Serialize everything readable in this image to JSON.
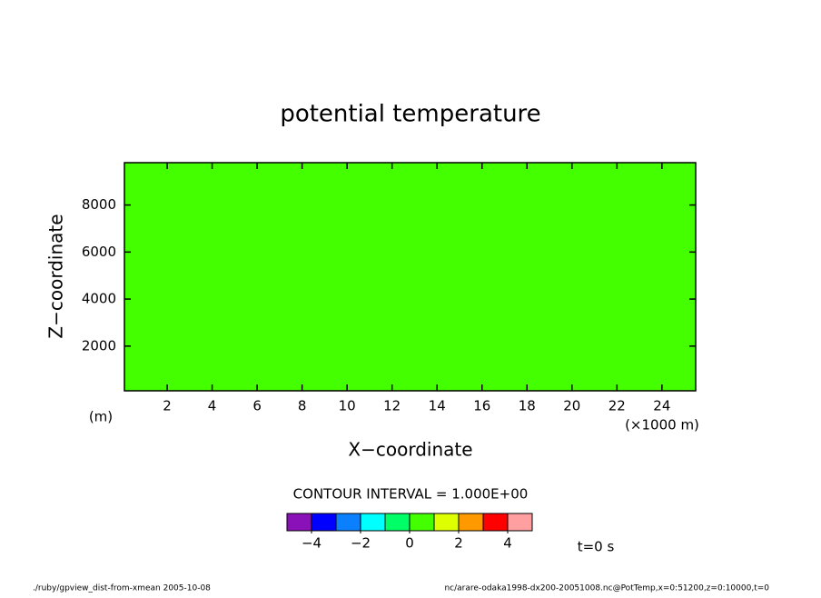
{
  "chart_data": {
    "type": "contour",
    "title": "potential temperature",
    "xlabel": "X−coordinate",
    "ylabel": "Z−coordinate",
    "xunit": "(×1000 m)",
    "yunit": "(m)",
    "xlim": [
      0.1,
      25.5
    ],
    "ylim": [
      100,
      9800
    ],
    "xticks": [
      2,
      4,
      6,
      8,
      10,
      12,
      14,
      16,
      18,
      20,
      22,
      24
    ],
    "yticks": [
      2000,
      4000,
      6000,
      8000
    ],
    "field_color": "#44ff00",
    "contour_interval": "CONTOUR INTERVAL = 1.000E+00",
    "colorbar": {
      "levels": [
        -5,
        -4,
        -3,
        -2,
        -1,
        0,
        1,
        2,
        3,
        4,
        5
      ],
      "colors": [
        "#8a10b8",
        "#0000ff",
        "#0a80ff",
        "#00ffff",
        "#00ff66",
        "#44ff00",
        "#ddff00",
        "#ff9900",
        "#ff0000",
        "#ff9f9f"
      ],
      "ticks": [
        {
          "value": -4,
          "label": "−4"
        },
        {
          "value": -2,
          "label": "−2"
        },
        0,
        2,
        4
      ]
    },
    "time_label": "t=0 s",
    "footer_left": "./ruby/gpview_dist-from-xmean  2005-10-08",
    "footer_right": "nc/arare-odaka1998-dx200-20051008.nc@PotTemp,x=0:51200,z=0:10000,t=0"
  }
}
